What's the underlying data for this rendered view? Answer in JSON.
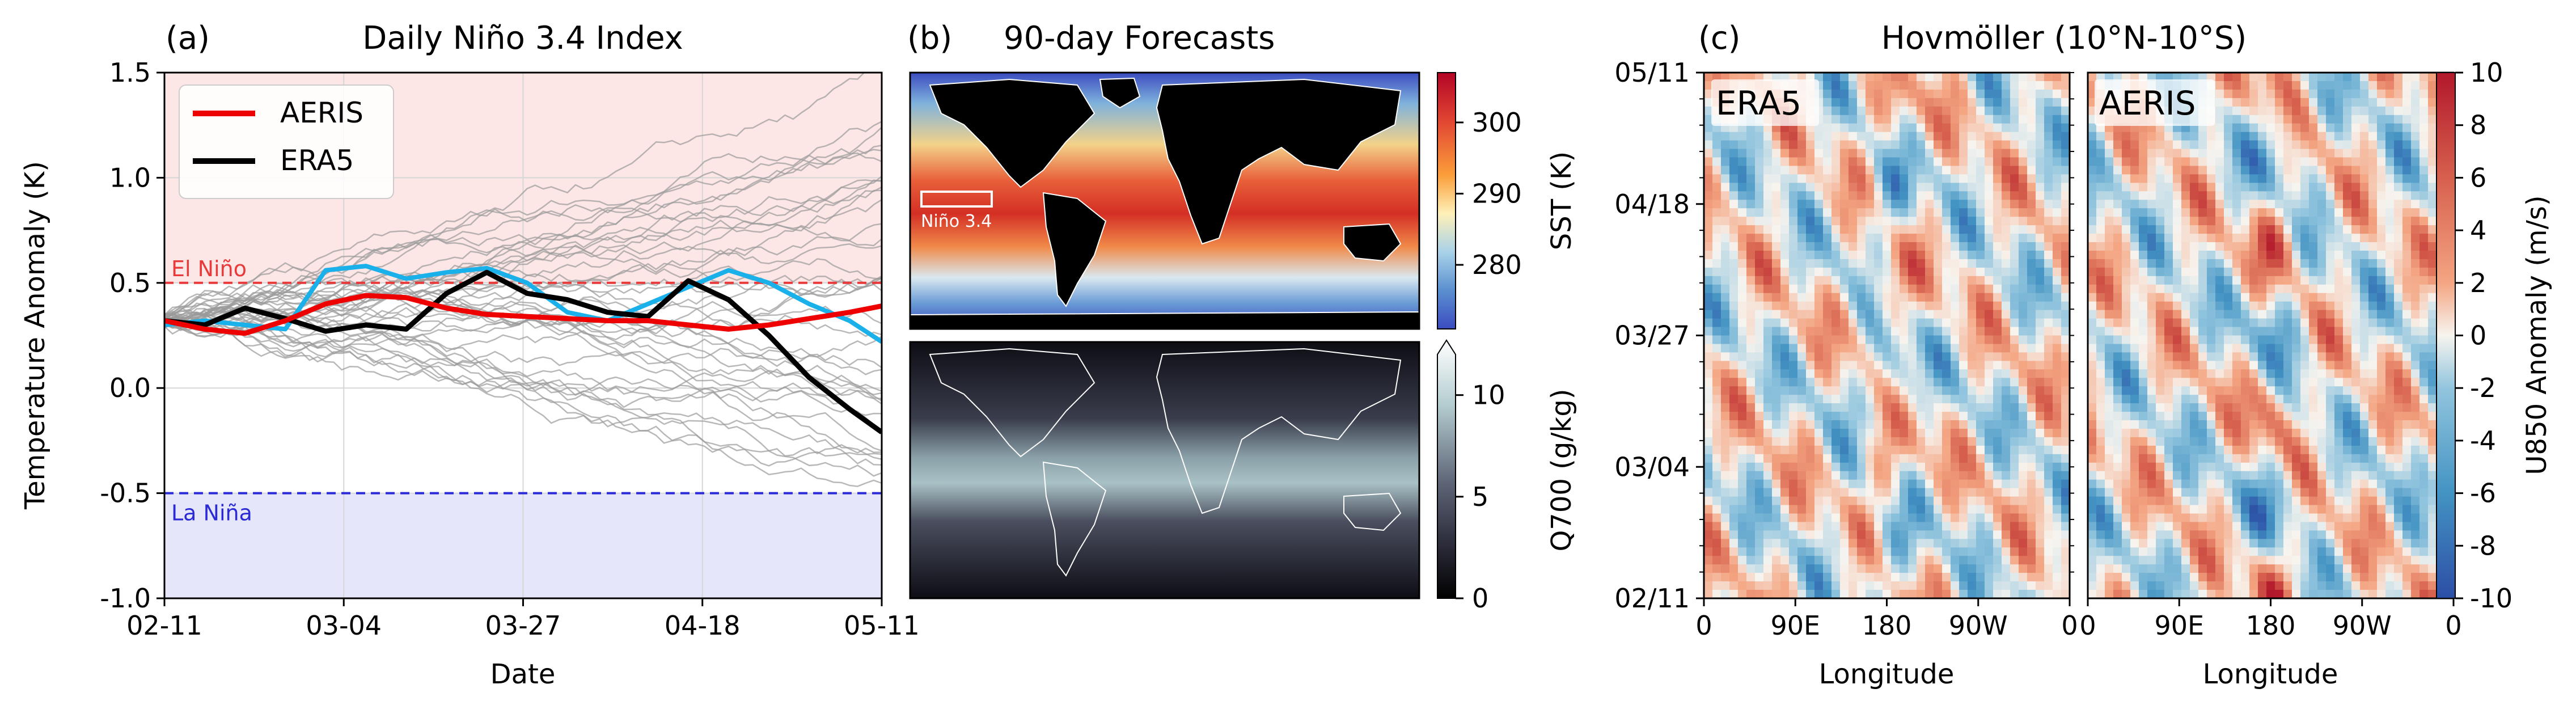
{
  "colors": {
    "aeris": "#ee0000",
    "era5": "#000000",
    "era5_sst_obs": "#1ab0ea",
    "ensemble": "#9a9a9a",
    "el_nino": "#e83a3a",
    "la_nina": "#2a2ad6",
    "el_nino_band": "#fde6e6",
    "la_nina_band": "#e6e6fa"
  },
  "chart_data": [
    {
      "panel": "(a)",
      "type": "line",
      "title": "Daily Niño 3.4 Index",
      "xlabel": "Date",
      "ylabel": "Temperature Anomaly (K)",
      "ylim": [
        -1.0,
        1.5
      ],
      "yticks": [
        "1.5",
        "1.0",
        "0.5",
        "0.0",
        "-0.5",
        "-1.0"
      ],
      "yticks_values": [
        1.5,
        1.0,
        0.5,
        0.0,
        -0.5,
        -1.0
      ],
      "xticks": [
        "02-11",
        "03-04",
        "03-27",
        "04-18",
        "05-11"
      ],
      "grid": true,
      "legend": {
        "placement": "top-left",
        "entries": [
          "AERIS",
          "ERA5"
        ]
      },
      "annotations": {
        "el_nino": "El Niño",
        "la_nina": "La Niña"
      },
      "thresholds": {
        "el_nino": 0.5,
        "la_nina": -0.5
      },
      "x_days": [
        0,
        5,
        10,
        15,
        20,
        25,
        30,
        35,
        40,
        45,
        50,
        55,
        60,
        65,
        70,
        75,
        80,
        85,
        89
      ],
      "series": [
        {
          "name": "AERIS",
          "role": "aeris",
          "values": [
            0.32,
            0.28,
            0.26,
            0.32,
            0.4,
            0.44,
            0.43,
            0.38,
            0.35,
            0.34,
            0.33,
            0.32,
            0.32,
            0.3,
            0.28,
            0.3,
            0.33,
            0.36,
            0.39
          ]
        },
        {
          "name": "ERA5",
          "role": "era5",
          "values": [
            0.32,
            0.3,
            0.38,
            0.33,
            0.27,
            0.3,
            0.28,
            0.45,
            0.55,
            0.45,
            0.42,
            0.36,
            0.34,
            0.51,
            0.42,
            0.25,
            0.05,
            -0.1,
            -0.21
          ]
        },
        {
          "role": "obs",
          "values": [
            0.3,
            0.32,
            0.3,
            0.28,
            0.56,
            0.58,
            0.52,
            0.55,
            0.57,
            0.5,
            0.36,
            0.32,
            0.4,
            0.48,
            0.56,
            0.5,
            0.4,
            0.32,
            0.22
          ]
        }
      ],
      "ensemble_members": 40
    },
    {
      "panel": "(b)",
      "type": "heatmap",
      "title": "90-day Forecasts",
      "maps": [
        {
          "ylabel": "SST (K)",
          "colorbar_ticks": [
            "280",
            "290",
            "300"
          ],
          "colorbar_values": [
            280,
            290,
            300
          ],
          "range": [
            271,
            307
          ],
          "box_label": "Niño 3.4"
        },
        {
          "ylabel": "Q700 (g/kg)",
          "colorbar_ticks": [
            "0",
            "5",
            "10"
          ],
          "colorbar_values": [
            0,
            5,
            10
          ],
          "range": [
            0,
            12
          ]
        }
      ]
    },
    {
      "panel": "(c)",
      "type": "heatmap",
      "title": "Hovmöller (10°N-10°S)",
      "xlabel": "Longitude",
      "panels": [
        "ERA5",
        "AERIS"
      ],
      "yticks": [
        "05/11",
        "04/18",
        "03/27",
        "03/04",
        "02/11"
      ],
      "xticks_left": [
        "0",
        "90E",
        "180",
        "90W",
        "0"
      ],
      "xticks_right": [
        "0",
        "90E",
        "180",
        "90W",
        "0"
      ],
      "colorbar_label": "U850 Anomaly (m/s)",
      "colorbar_ticks": [
        "10",
        "8",
        "6",
        "4",
        "2",
        "0",
        "-2",
        "-4",
        "-6",
        "-8",
        "-10"
      ],
      "colorbar_values": [
        10,
        8,
        6,
        4,
        2,
        0,
        -2,
        -4,
        -6,
        -8,
        -10
      ],
      "range": [
        -10,
        10
      ]
    }
  ]
}
